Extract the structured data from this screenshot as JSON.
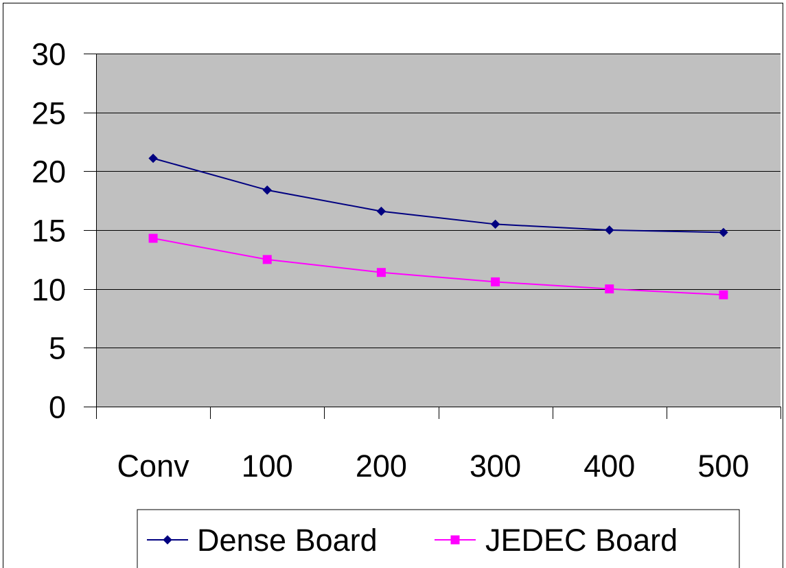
{
  "chart_data": {
    "type": "line",
    "categories": [
      "Conv",
      "100",
      "200",
      "300",
      "400",
      "500"
    ],
    "series": [
      {
        "name": "Dense Board",
        "values": [
          21.1,
          18.4,
          16.6,
          15.5,
          15.0,
          14.8
        ],
        "color": "#000080",
        "marker": "diamond"
      },
      {
        "name": "JEDEC Board",
        "values": [
          14.3,
          12.5,
          11.4,
          10.6,
          10.0,
          9.5
        ],
        "color": "#FF00FF",
        "marker": "square"
      }
    ],
    "ylim": [
      0,
      30
    ],
    "yticks": [
      "0",
      "5",
      "10",
      "15",
      "20",
      "25",
      "30"
    ],
    "grid": true,
    "plot_background": "#C0C0C0",
    "legend_position": "bottom"
  }
}
